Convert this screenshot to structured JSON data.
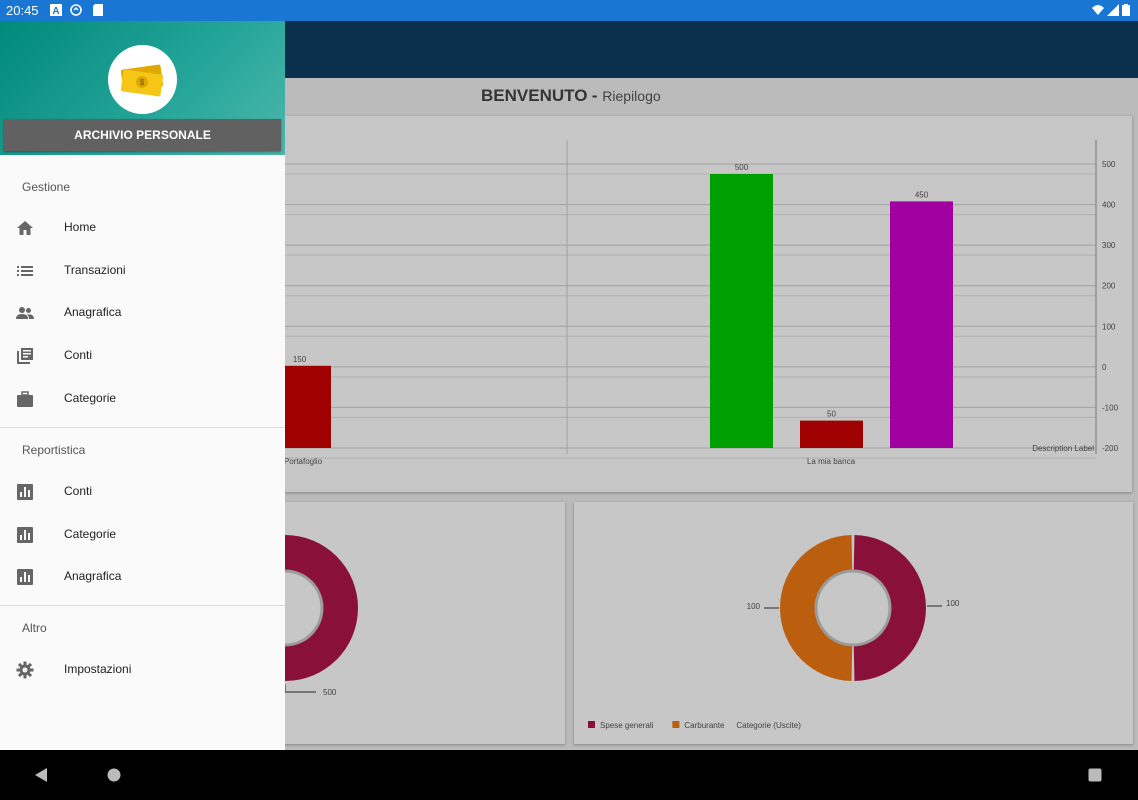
{
  "status_bar": {
    "time": "20:45"
  },
  "page": {
    "title": "BENVENUTO",
    "subtitle": "Riepilogo"
  },
  "drawer": {
    "header_button": "ARCHIVIO PERSONALE",
    "sections": [
      {
        "title": "Gestione",
        "items": [
          {
            "label": "Home",
            "icon": "home-icon"
          },
          {
            "label": "Transazioni",
            "icon": "list-icon"
          },
          {
            "label": "Anagrafica",
            "icon": "people-icon"
          },
          {
            "label": "Conti",
            "icon": "library-icon"
          },
          {
            "label": "Categorie",
            "icon": "briefcase-icon"
          }
        ]
      },
      {
        "title": "Reportistica",
        "items": [
          {
            "label": "Conti",
            "icon": "bar-chart-icon"
          },
          {
            "label": "Categorie",
            "icon": "bar-chart-icon"
          },
          {
            "label": "Anagrafica",
            "icon": "bar-chart-icon"
          }
        ]
      },
      {
        "title": "Altro",
        "items": [
          {
            "label": "Impostazioni",
            "icon": "gear-icon"
          }
        ]
      }
    ]
  },
  "chart_data": [
    {
      "type": "bar",
      "categories": [
        "Portafoglio",
        "La mia banca"
      ],
      "right_axis_ticks": [
        "500",
        "400",
        "300",
        "200",
        "100",
        "0",
        "-100",
        "-200"
      ],
      "ylim": [
        -200,
        500
      ],
      "bars": [
        {
          "category": "Portafoglio",
          "value": 150,
          "label": "150",
          "color": "#cc0000"
        },
        {
          "category": "La mia banca",
          "value": 500,
          "label": "500",
          "color": "#00cc00"
        },
        {
          "category": "La mia banca",
          "value": 50,
          "label": "50",
          "color": "#cc0000"
        },
        {
          "category": "La mia banca",
          "value": 450,
          "label": "450",
          "color": "#cc00cc"
        }
      ],
      "description_label": "Description Label"
    },
    {
      "type": "pie",
      "labels": [
        "500"
      ],
      "values": [
        500
      ],
      "colors": [
        "#b0174a"
      ]
    },
    {
      "type": "pie",
      "labels": [
        "100",
        "100"
      ],
      "values": [
        100,
        100
      ],
      "colors": [
        "#b0174a",
        "#f07a12"
      ],
      "legend": [
        "Spese generali",
        "Carburante"
      ],
      "legend_title": "Categorie (Uscite)"
    }
  ]
}
